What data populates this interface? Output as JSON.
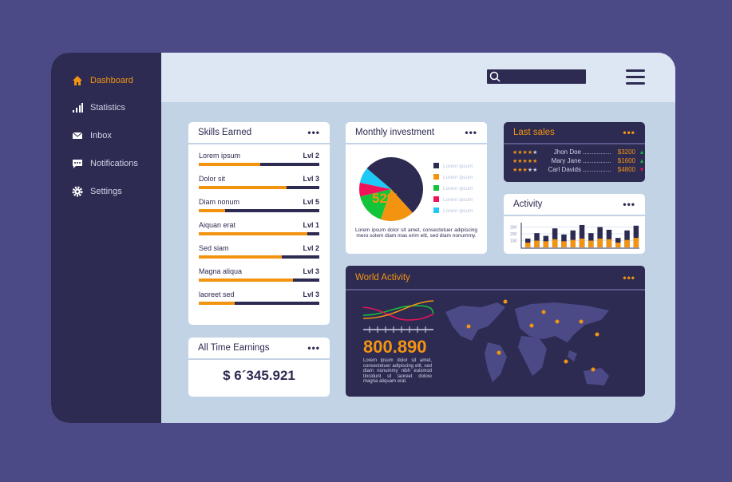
{
  "sidebar": {
    "items": [
      {
        "label": "Dashboard",
        "icon": "home-icon",
        "active": true
      },
      {
        "label": "Statistics",
        "icon": "bar-chart-icon"
      },
      {
        "label": "Inbox",
        "icon": "envelope-icon"
      },
      {
        "label": "Notifications",
        "icon": "chat-bubble-icon"
      },
      {
        "label": "Settings",
        "icon": "gear-icon"
      }
    ]
  },
  "topbar": {
    "search_placeholder": ""
  },
  "skills": {
    "title": "Skills Earned",
    "items": [
      {
        "name": "Lorem ipsum",
        "level": "Lvl 2",
        "progress": 0.51
      },
      {
        "name": "Dolor sit",
        "level": "Lvl 3",
        "progress": 0.73
      },
      {
        "name": "Diam nonum",
        "level": "Lvl 5",
        "progress": 0.22
      },
      {
        "name": "Aiquan erat",
        "level": "Lvl 1",
        "progress": 0.9
      },
      {
        "name": "Sed siam",
        "level": "Lvl 2",
        "progress": 0.69
      },
      {
        "name": "Magna aliqua",
        "level": "Lvl 3",
        "progress": 0.78
      },
      {
        "name": "laoreet sed",
        "level": "Lvl 3",
        "progress": 0.3
      }
    ]
  },
  "earnings": {
    "title": "All Time Earnings",
    "value": "$ 6´345.921"
  },
  "investment": {
    "title": "Monthly investment",
    "center_label": "52%",
    "slices": [
      {
        "value": 52,
        "color": "#2d2b52"
      },
      {
        "value": 17,
        "color": "#f39411"
      },
      {
        "value": 16,
        "color": "#12c43a"
      },
      {
        "value": 7,
        "color": "#f0135a"
      },
      {
        "value": 8,
        "color": "#1fc9f5"
      }
    ],
    "legend": [
      "Lorem ipsum",
      "Lorem ipsum",
      "Lorem ipsum",
      "Lorem ipsum",
      "Lorem ipsum"
    ],
    "text": "Lorem ipsum dolor sit amet, consectetuer adipiscing mero solem diam mas erim elit, sed diam nonummy."
  },
  "last_sales": {
    "title": "Last sales",
    "rows": [
      {
        "stars": 4,
        "name": "Jhon Doe",
        "amount": "$3200",
        "trend": "up"
      },
      {
        "stars": 5,
        "name": "Mary Jane",
        "amount": "$1600",
        "trend": "up"
      },
      {
        "stars": 3,
        "name": "Carl Davids",
        "amount": "$4800",
        "trend": "down"
      }
    ]
  },
  "activity": {
    "title": "Activity",
    "yticks": [
      "300",
      "200",
      "100"
    ],
    "totals": [
      130,
      210,
      170,
      280,
      190,
      250,
      330,
      210,
      300,
      260,
      140,
      250,
      320
    ],
    "orange": [
      70,
      100,
      90,
      120,
      90,
      110,
      130,
      100,
      130,
      120,
      70,
      110,
      140
    ]
  },
  "world": {
    "title": "World Activity",
    "value": "800.890",
    "text": "Lorem ipsum dolor sit amet, consectetuer adipiscing elit, sed diam nonummy nibh euismod tincidunt ut laoreet dolore magna aliquam erat.",
    "colors": {
      "accent": "#f39411",
      "line_green": "#12c43a",
      "line_pink": "#f0135a"
    }
  }
}
